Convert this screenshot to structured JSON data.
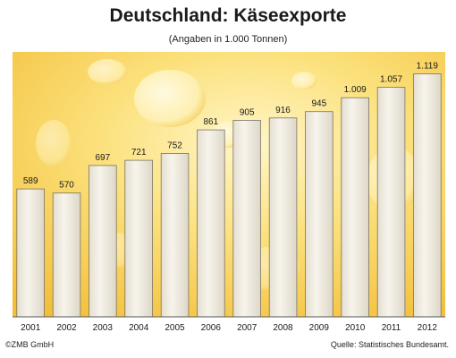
{
  "title": "Deutschland: Käseexporte",
  "subtitle": "(Angaben in 1.000 Tonnen)",
  "copyright": "©ZMB GmbH",
  "source": "Quelle: Statistisches Bundesamt.",
  "colors": {
    "bar_fill": "#f1ede2",
    "bar_stroke": "#7a7364",
    "cheese_light": "#fff4c2",
    "cheese_dark": "#f0b52e"
  },
  "chart_data": {
    "type": "bar",
    "title": "Deutschland: Käseexporte",
    "subtitle": "(Angaben in 1.000 Tonnen)",
    "categories": [
      "2001",
      "2002",
      "2003",
      "2004",
      "2005",
      "2006",
      "2007",
      "2008",
      "2009",
      "2010",
      "2011",
      "2012"
    ],
    "values": [
      589,
      570,
      697,
      721,
      752,
      861,
      905,
      916,
      945,
      1009,
      1057,
      1119
    ],
    "value_labels": [
      "589",
      "570",
      "697",
      "721",
      "752",
      "861",
      "905",
      "916",
      "945",
      "1.009",
      "1.057",
      "1.119"
    ],
    "ylim": [
      0,
      1220
    ],
    "grid": false,
    "legend": "none"
  }
}
